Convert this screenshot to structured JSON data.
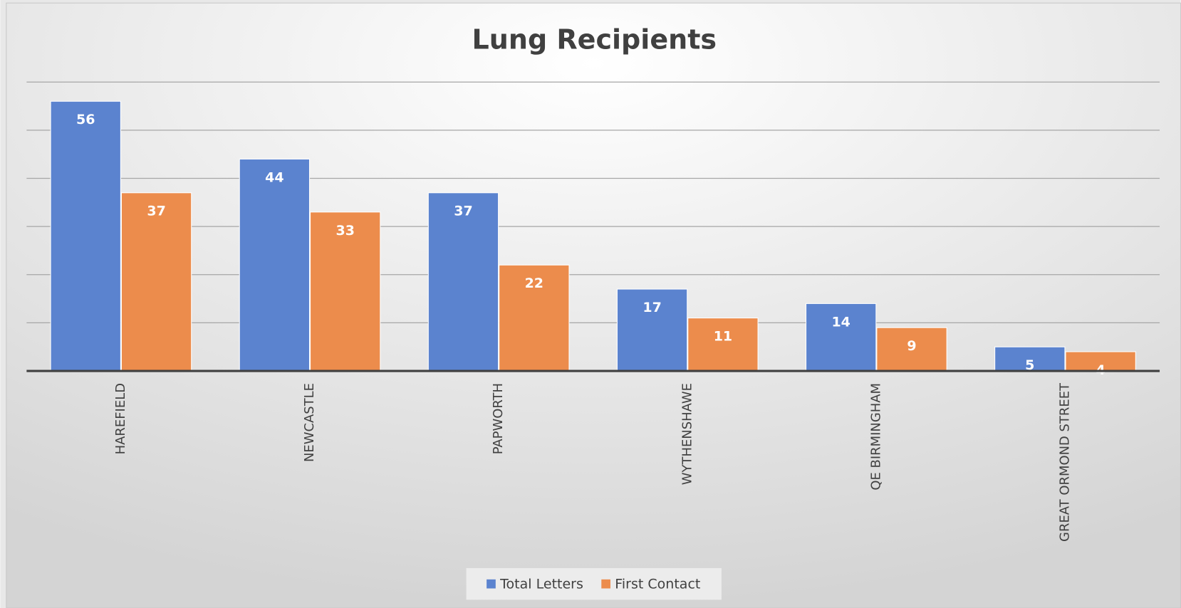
{
  "chart_data": {
    "type": "bar",
    "title": "Lung Recipients",
    "categories": [
      "HAREFIELD",
      "NEWCASTLE",
      "PAPWORTH",
      "WYTHENSHAWE",
      "QE BIRMINGHAM",
      "GREAT ORMOND STREET"
    ],
    "series": [
      {
        "name": "Total Letters",
        "color": "#5b83cf",
        "values": [
          56,
          44,
          37,
          17,
          14,
          5
        ]
      },
      {
        "name": "First Contact",
        "color": "#ec8c4c",
        "values": [
          37,
          33,
          22,
          11,
          9,
          4
        ]
      }
    ],
    "ylim": [
      0,
      60
    ],
    "yticks": [
      0,
      10,
      20,
      30,
      40,
      50,
      60
    ],
    "grid": true,
    "legend": "bottom"
  }
}
